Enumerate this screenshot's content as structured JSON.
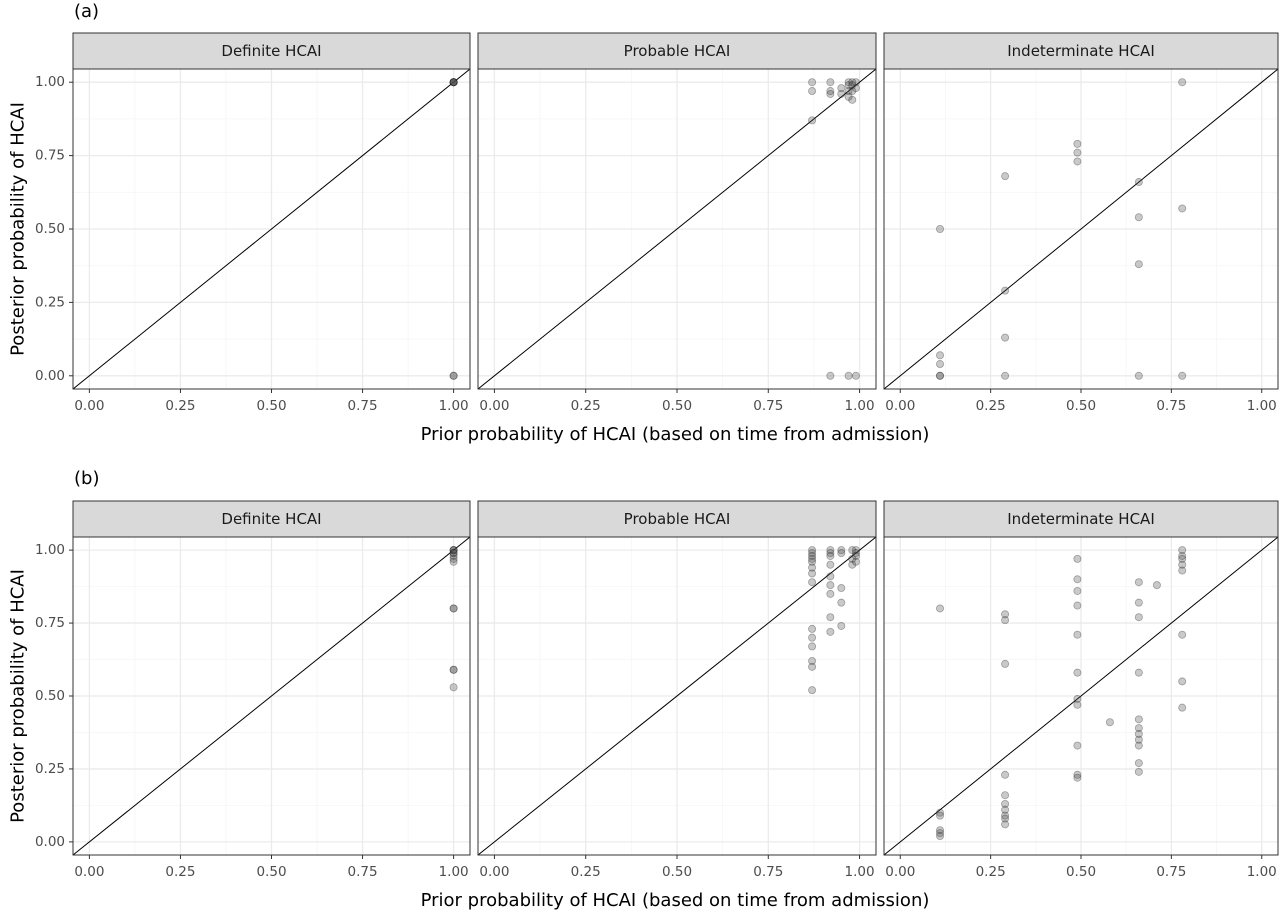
{
  "figure": {
    "colors": {
      "strip_fill": "#d9d9d9",
      "panel_border": "#333333",
      "grid_major": "#ebebeb",
      "grid_minor": "#f5f5f5",
      "point_fill": "#4d4d4d",
      "point_stroke": "#1a1a1a",
      "reference_line": "#000000"
    },
    "point_opacity": 0.3
  },
  "chart_data": [
    {
      "type": "scatter",
      "tag": "(a)",
      "xlabel": "Prior probability of HCAI (based on time from admission)",
      "ylabel": "Posterior probability of HCAI",
      "xlim": [
        0,
        1
      ],
      "ylim": [
        0,
        1
      ],
      "x_ticks": [
        "0.00",
        "0.25",
        "0.50",
        "0.75",
        "1.00"
      ],
      "y_ticks": [
        "0.00",
        "0.25",
        "0.50",
        "0.75",
        "1.00"
      ],
      "grid": true,
      "reference_line": "y = x",
      "facets": [
        {
          "label": "Definite HCAI",
          "points": [
            [
              1,
              1
            ],
            [
              1,
              1
            ],
            [
              1,
              1
            ],
            [
              1,
              1
            ],
            [
              1,
              1
            ],
            [
              1,
              1
            ],
            [
              1,
              0
            ],
            [
              1,
              0
            ]
          ]
        },
        {
          "label": "Probable HCAI",
          "points": [
            [
              0.87,
              1.0
            ],
            [
              0.87,
              0.97
            ],
            [
              0.87,
              0.87
            ],
            [
              0.92,
              1.0
            ],
            [
              0.92,
              0.97
            ],
            [
              0.92,
              0.96
            ],
            [
              0.92,
              0
            ],
            [
              0.95,
              0.98
            ],
            [
              0.95,
              0.96
            ],
            [
              0.97,
              1.0
            ],
            [
              0.97,
              0.99
            ],
            [
              0.97,
              0.97
            ],
            [
              0.97,
              0.95
            ],
            [
              0.97,
              0
            ],
            [
              0.98,
              1.0
            ],
            [
              0.98,
              0.99
            ],
            [
              0.98,
              0.97
            ],
            [
              0.98,
              0.94
            ],
            [
              0.99,
              1.0
            ],
            [
              0.99,
              0.98
            ],
            [
              0.99,
              0
            ]
          ]
        },
        {
          "label": "Indeterminate HCAI",
          "points": [
            [
              0.11,
              0.5
            ],
            [
              0.11,
              0.07
            ],
            [
              0.11,
              0.04
            ],
            [
              0.11,
              0.0
            ],
            [
              0.11,
              0.0
            ],
            [
              0.29,
              0.68
            ],
            [
              0.29,
              0.29
            ],
            [
              0.29,
              0.13
            ],
            [
              0.29,
              0.0
            ],
            [
              0.49,
              0.79
            ],
            [
              0.49,
              0.76
            ],
            [
              0.49,
              0.73
            ],
            [
              0.66,
              0.66
            ],
            [
              0.66,
              0.54
            ],
            [
              0.66,
              0.38
            ],
            [
              0.66,
              0.0
            ],
            [
              0.78,
              1.0
            ],
            [
              0.78,
              0.57
            ],
            [
              0.78,
              0.0
            ]
          ]
        }
      ]
    },
    {
      "type": "scatter",
      "tag": "(b)",
      "xlabel": "Prior probability of HCAI (based on time from admission)",
      "ylabel": "Posterior probability of HCAI",
      "xlim": [
        0,
        1
      ],
      "ylim": [
        0,
        1
      ],
      "x_ticks": [
        "0.00",
        "0.25",
        "0.50",
        "0.75",
        "1.00"
      ],
      "y_ticks": [
        "0.00",
        "0.25",
        "0.50",
        "0.75",
        "1.00"
      ],
      "grid": true,
      "reference_line": "y = x",
      "facets": [
        {
          "label": "Definite HCAI",
          "points": [
            [
              1,
              1.0
            ],
            [
              1,
              1.0
            ],
            [
              1,
              1.0
            ],
            [
              1,
              0.99
            ],
            [
              1,
              0.99
            ],
            [
              1,
              0.98
            ],
            [
              1,
              0.97
            ],
            [
              1,
              0.96
            ],
            [
              1,
              0.8
            ],
            [
              1,
              0.8
            ],
            [
              1,
              0.59
            ],
            [
              1,
              0.59
            ],
            [
              1,
              0.53
            ]
          ]
        },
        {
          "label": "Probable HCAI",
          "points": [
            [
              0.87,
              1.0
            ],
            [
              0.87,
              0.99
            ],
            [
              0.87,
              0.98
            ],
            [
              0.87,
              0.97
            ],
            [
              0.87,
              0.96
            ],
            [
              0.87,
              0.94
            ],
            [
              0.87,
              0.92
            ],
            [
              0.87,
              0.89
            ],
            [
              0.87,
              0.73
            ],
            [
              0.87,
              0.7
            ],
            [
              0.87,
              0.67
            ],
            [
              0.87,
              0.62
            ],
            [
              0.87,
              0.6
            ],
            [
              0.87,
              0.52
            ],
            [
              0.92,
              1.0
            ],
            [
              0.92,
              0.99
            ],
            [
              0.92,
              0.98
            ],
            [
              0.92,
              0.95
            ],
            [
              0.92,
              0.91
            ],
            [
              0.92,
              0.88
            ],
            [
              0.92,
              0.85
            ],
            [
              0.92,
              0.77
            ],
            [
              0.92,
              0.72
            ],
            [
              0.95,
              1.0
            ],
            [
              0.95,
              0.99
            ],
            [
              0.95,
              0.87
            ],
            [
              0.95,
              0.82
            ],
            [
              0.95,
              0.74
            ],
            [
              0.98,
              1.0
            ],
            [
              0.98,
              0.97
            ],
            [
              0.98,
              0.95
            ],
            [
              0.99,
              1.0
            ],
            [
              0.99,
              0.99
            ],
            [
              0.99,
              0.98
            ],
            [
              0.99,
              0.96
            ]
          ]
        },
        {
          "label": "Indeterminate HCAI",
          "points": [
            [
              0.11,
              0.8
            ],
            [
              0.11,
              0.1
            ],
            [
              0.11,
              0.09
            ],
            [
              0.11,
              0.04
            ],
            [
              0.11,
              0.03
            ],
            [
              0.11,
              0.02
            ],
            [
              0.29,
              0.78
            ],
            [
              0.29,
              0.76
            ],
            [
              0.29,
              0.61
            ],
            [
              0.29,
              0.23
            ],
            [
              0.29,
              0.16
            ],
            [
              0.29,
              0.13
            ],
            [
              0.29,
              0.11
            ],
            [
              0.29,
              0.09
            ],
            [
              0.29,
              0.08
            ],
            [
              0.29,
              0.06
            ],
            [
              0.49,
              0.97
            ],
            [
              0.49,
              0.9
            ],
            [
              0.49,
              0.86
            ],
            [
              0.49,
              0.81
            ],
            [
              0.49,
              0.71
            ],
            [
              0.49,
              0.58
            ],
            [
              0.49,
              0.49
            ],
            [
              0.49,
              0.47
            ],
            [
              0.49,
              0.33
            ],
            [
              0.49,
              0.23
            ],
            [
              0.49,
              0.22
            ],
            [
              0.58,
              0.41
            ],
            [
              0.66,
              0.89
            ],
            [
              0.66,
              0.82
            ],
            [
              0.66,
              0.77
            ],
            [
              0.66,
              0.58
            ],
            [
              0.66,
              0.42
            ],
            [
              0.66,
              0.39
            ],
            [
              0.66,
              0.37
            ],
            [
              0.66,
              0.35
            ],
            [
              0.66,
              0.33
            ],
            [
              0.66,
              0.27
            ],
            [
              0.66,
              0.24
            ],
            [
              0.71,
              0.88
            ],
            [
              0.78,
              1.0
            ],
            [
              0.78,
              0.98
            ],
            [
              0.78,
              0.97
            ],
            [
              0.78,
              0.95
            ],
            [
              0.78,
              0.93
            ],
            [
              0.78,
              0.71
            ],
            [
              0.78,
              0.55
            ],
            [
              0.78,
              0.46
            ]
          ]
        }
      ]
    }
  ]
}
